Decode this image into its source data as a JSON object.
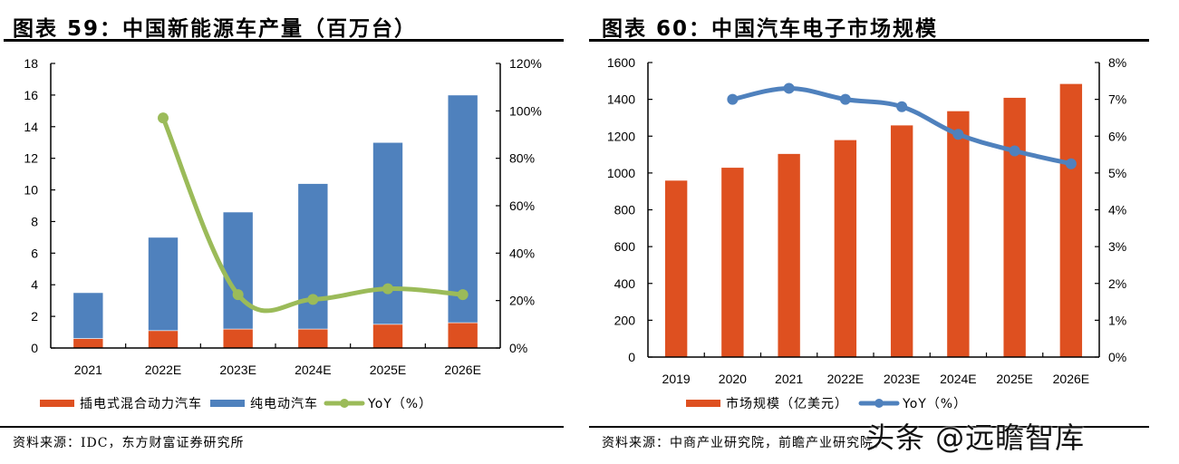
{
  "left_panel": {
    "title": "图表 59：中国新能源车产量（百万台）",
    "source": "资料来源：IDC，东方财富证券研究所"
  },
  "right_panel": {
    "title": "图表 60：中国汽车电子市场规模",
    "source": "资料来源：中商产业研究院，前瞻产业研究院，"
  },
  "watermark": "头条 @远瞻智库",
  "chart_data": [
    {
      "type": "bar",
      "stacked": true,
      "title": "中国新能源车产量（百万台）",
      "categories": [
        "2021",
        "2022E",
        "2023E",
        "2024E",
        "2025E",
        "2026E"
      ],
      "series": [
        {
          "name": "插电式混合动力汽车",
          "type": "bar",
          "axis": "left",
          "color": "#DE5020",
          "values": [
            0.6,
            1.1,
            1.2,
            1.2,
            1.5,
            1.6
          ]
        },
        {
          "name": "纯电动汽车",
          "type": "bar",
          "axis": "left",
          "color": "#4F81BD",
          "values": [
            2.9,
            5.9,
            7.4,
            9.2,
            11.5,
            14.4
          ]
        },
        {
          "name": "YoY（%）",
          "type": "line",
          "axis": "right",
          "color": "#9BBB59",
          "smooth": true,
          "values": [
            null,
            97,
            22.5,
            20.5,
            25,
            22.5
          ]
        }
      ],
      "ylim": [
        0,
        18
      ],
      "yticks": [
        "0",
        "2",
        "4",
        "6",
        "8",
        "10",
        "12",
        "14",
        "16",
        "18"
      ],
      "y2lim": [
        0,
        120
      ],
      "y2ticks": [
        "0%",
        "20%",
        "40%",
        "60%",
        "80%",
        "100%",
        "120%"
      ],
      "xlabel": "",
      "ylabel": "",
      "y2label": "",
      "grid": false,
      "legend": "bottom"
    },
    {
      "type": "bar",
      "title": "中国汽车电子市场规模",
      "categories": [
        "2019",
        "2020",
        "2021",
        "2022E",
        "2023E",
        "2024E",
        "2025E",
        "2026E"
      ],
      "series": [
        {
          "name": "市场规模（亿美元）",
          "type": "bar",
          "axis": "left",
          "color": "#DE5020",
          "values": [
            960,
            1030,
            1105,
            1180,
            1260,
            1337,
            1410,
            1485
          ]
        },
        {
          "name": "YoY（%）",
          "type": "line",
          "axis": "right",
          "color": "#4F81BD",
          "smooth": true,
          "values": [
            null,
            7.0,
            7.3,
            7.0,
            6.8,
            6.05,
            5.6,
            5.25
          ]
        }
      ],
      "ylim": [
        0,
        1600
      ],
      "yticks": [
        "0",
        "200",
        "400",
        "600",
        "800",
        "1000",
        "1200",
        "1400",
        "1600"
      ],
      "y2lim": [
        0,
        8
      ],
      "y2ticks": [
        "0%",
        "1%",
        "2%",
        "3%",
        "4%",
        "5%",
        "6%",
        "7%",
        "8%"
      ],
      "xlabel": "",
      "ylabel": "",
      "y2label": "",
      "grid": false,
      "legend": "bottom"
    }
  ]
}
